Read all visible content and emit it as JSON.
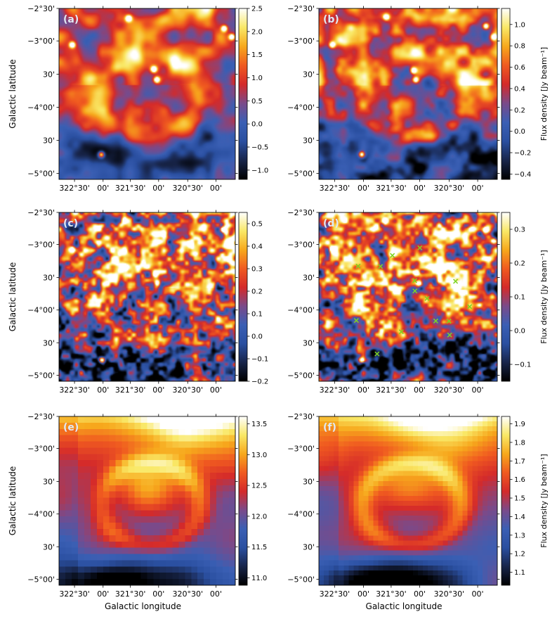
{
  "chart_data": [
    {
      "type": "heatmap",
      "label": "(a)",
      "xticklabels": [
        "322°30'",
        "00'",
        "321°30'",
        "00'",
        "320°30'",
        "00'"
      ],
      "yticklabels": [
        "−2°30'",
        "−3°00'",
        "30'",
        "−4°00'",
        "30'",
        "−5°00'"
      ],
      "ylabel": "Galactic latitude",
      "xlabel": "",
      "colorbar": {
        "label": "",
        "ticks": [
          -1.0,
          -0.5,
          0.0,
          0.5,
          1.0,
          1.5,
          2.0,
          2.5
        ],
        "ticklabels": [
          "−1.0",
          "−0.5",
          "0.0",
          "0.5",
          "1.0",
          "1.5",
          "2.0",
          "2.5"
        ],
        "range": [
          -1.2,
          2.5
        ]
      },
      "style": "smooth",
      "seed": 11,
      "sources": [
        [
          0.937,
          0.117
        ],
        [
          0.395,
          0.058
        ],
        [
          0.555,
          0.417
        ],
        [
          0.538,
          0.356
        ],
        [
          0.075,
          0.213
        ],
        [
          0.24,
          0.855
        ],
        [
          0.98,
          0.167
        ]
      ],
      "markers": []
    },
    {
      "type": "heatmap",
      "label": "(b)",
      "xticklabels": [
        "322°30'",
        "00'",
        "321°30'",
        "00'",
        "320°30'",
        "00'"
      ],
      "yticklabels": [
        "−2°30'",
        "−3°00'",
        "30'",
        "−4°00'",
        "30'",
        "−5°00'"
      ],
      "ylabel": "",
      "xlabel": "",
      "colorbar": {
        "label": "Flux density [Jy beam⁻¹]",
        "ticks": [
          -0.4,
          -0.2,
          0.0,
          0.2,
          0.4,
          0.6,
          0.8,
          1.0
        ],
        "ticklabels": [
          "−0.4",
          "−0.2",
          "0.0",
          "0.2",
          "0.4",
          "0.6",
          "0.8",
          "1.0"
        ],
        "range": [
          -0.45,
          1.15
        ]
      },
      "style": "medium",
      "seed": 23,
      "sources": [
        [
          0.937,
          0.104
        ],
        [
          0.378,
          0.05
        ],
        [
          0.543,
          0.418
        ],
        [
          0.53,
          0.363
        ],
        [
          0.075,
          0.213
        ],
        [
          0.24,
          0.855
        ],
        [
          0.98,
          0.167
        ]
      ],
      "markers": []
    },
    {
      "type": "heatmap",
      "label": "(c)",
      "xticklabels": [
        "322°30'",
        "00'",
        "321°30'",
        "00'",
        "320°30'",
        "00'"
      ],
      "yticklabels": [
        "−2°30'",
        "−3°00'",
        "30'",
        "−4°00'",
        "30'",
        "−5°00'"
      ],
      "ylabel": "Galactic latitude",
      "xlabel": "",
      "colorbar": {
        "label": "",
        "ticks": [
          -0.2,
          -0.1,
          0.0,
          0.1,
          0.2,
          0.3,
          0.4,
          0.5
        ],
        "ticklabels": [
          "−0.2",
          "−0.1",
          "0.0",
          "0.1",
          "0.2",
          "0.3",
          "0.4",
          "0.5"
        ],
        "range": [
          -0.2,
          0.55
        ]
      },
      "style": "rough",
      "seed": 37,
      "sources": [
        [
          0.937,
          0.104
        ],
        [
          0.371,
          0.05
        ],
        [
          0.56,
          0.42
        ],
        [
          0.547,
          0.363
        ],
        [
          0.075,
          0.22
        ],
        [
          0.24,
          0.875
        ],
        [
          0.98,
          0.167
        ]
      ],
      "markers": []
    },
    {
      "type": "heatmap",
      "label": "(d)",
      "xticklabels": [
        "322°30'",
        "00'",
        "321°30'",
        "00'",
        "320°30'",
        "00'"
      ],
      "yticklabels": [
        "−2°30'",
        "−3°00'",
        "30'",
        "−4°00'",
        "30'",
        "−5°00'"
      ],
      "ylabel": "",
      "xlabel": "",
      "colorbar": {
        "label": "Flux density [Jy beam⁻¹]",
        "ticks": [
          -0.1,
          0.0,
          0.1,
          0.2,
          0.3
        ],
        "ticklabels": [
          "−0.1",
          "0.0",
          "0.1",
          "0.2",
          "0.3"
        ],
        "range": [
          -0.15,
          0.35
        ]
      },
      "style": "rough",
      "seed": 41,
      "sources": [
        [
          0.937,
          0.104
        ],
        [
          0.371,
          0.05
        ],
        [
          0.56,
          0.42
        ],
        [
          0.547,
          0.363
        ],
        [
          0.075,
          0.22
        ],
        [
          0.24,
          0.875
        ],
        [
          0.98,
          0.167
        ]
      ],
      "markers": [
        [
          0.22,
          0.318
        ],
        [
          0.345,
          0.32
        ],
        [
          0.412,
          0.255
        ],
        [
          0.566,
          0.21
        ],
        [
          0.537,
          0.404
        ],
        [
          0.538,
          0.465
        ],
        [
          0.606,
          0.51
        ],
        [
          0.655,
          0.643
        ],
        [
          0.729,
          0.644
        ],
        [
          0.766,
          0.408
        ],
        [
          0.845,
          0.558
        ],
        [
          0.21,
          0.64
        ],
        [
          0.462,
          0.707
        ],
        [
          0.733,
          0.726
        ],
        [
          0.326,
          0.838
        ]
      ]
    },
    {
      "type": "heatmap",
      "label": "(e)",
      "xticklabels": [
        "322°30'",
        "00'",
        "321°30'",
        "00'",
        "320°30'",
        "00'"
      ],
      "yticklabels": [
        "−2°30'",
        "−3°00'",
        "30'",
        "−4°00'",
        "30'",
        "−5°00'"
      ],
      "ylabel": "Galactic latitude",
      "xlabel": "Galactic longitude",
      "colorbar": {
        "label": "",
        "ticks": [
          11.0,
          11.5,
          12.0,
          12.5,
          13.0,
          13.5
        ],
        "ticklabels": [
          "11.0",
          "11.5",
          "12.0",
          "12.5",
          "13.0",
          "13.5"
        ],
        "range": [
          10.88,
          13.62
        ]
      },
      "style": "pixel",
      "seed": 53,
      "sources": [],
      "markers": []
    },
    {
      "type": "heatmap",
      "label": "(f)",
      "xticklabels": [
        "322°30'",
        "00'",
        "321°30'",
        "00'",
        "320°30'",
        "00'"
      ],
      "yticklabels": [
        "−2°30'",
        "−3°00'",
        "30'",
        "−4°00'",
        "30'",
        "−5°00'"
      ],
      "ylabel": "",
      "xlabel": "Galactic longitude",
      "colorbar": {
        "label": "Flux density [Jy beam⁻¹]",
        "ticks": [
          1.1,
          1.2,
          1.3,
          1.4,
          1.5,
          1.6,
          1.7,
          1.8,
          1.9
        ],
        "ticklabels": [
          "1.1",
          "1.2",
          "1.3",
          "1.4",
          "1.5",
          "1.6",
          "1.7",
          "1.8",
          "1.9"
        ],
        "range": [
          1.03,
          1.94
        ]
      },
      "style": "pixel2",
      "seed": 67,
      "sources": [],
      "markers": []
    }
  ],
  "colors": {
    "colormap": [
      "#000000",
      "#18254a",
      "#2a4fa0",
      "#3a5fb4",
      "#7a4a8a",
      "#d42a2a",
      "#f05a20",
      "#f7a81c",
      "#f9e866",
      "#ffffff"
    ],
    "marker": "#7ed321",
    "label_text": "#e0e8f4"
  }
}
